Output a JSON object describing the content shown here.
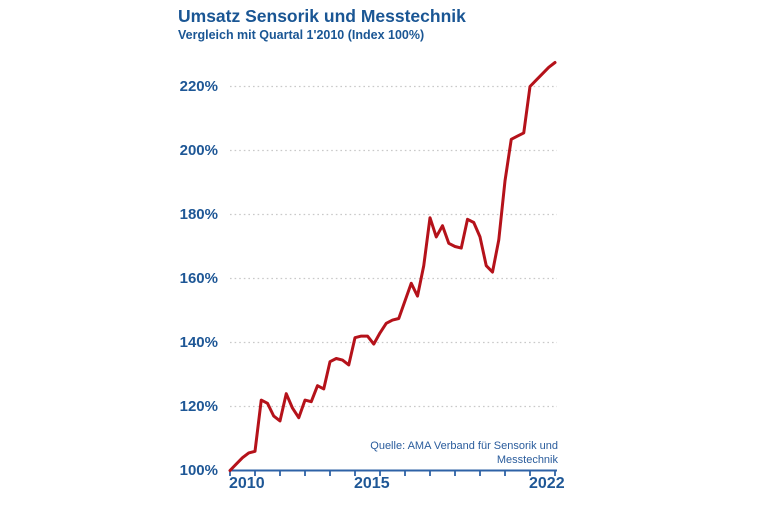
{
  "header": {
    "title": "Umsatz Sensorik und Messtechnik",
    "subtitle": "Vergleich mit Quartal 1'2010 (Index 100%)"
  },
  "source": {
    "line1": "Quelle: AMA Verband für Sensorik und",
    "line2": "Messtechnik"
  },
  "chart_data": {
    "type": "line",
    "title": "Umsatz Sensorik und Messtechnik",
    "subtitle": "Vergleich mit Quartal 1'2010 (Index 100%)",
    "x_unit": "quarter",
    "x_start": "2010 Q1",
    "x_end": "2023 Q1",
    "categories": [
      "2010 Q1",
      "2010 Q2",
      "2010 Q3",
      "2010 Q4",
      "2011 Q1",
      "2011 Q2",
      "2011 Q3",
      "2011 Q4",
      "2012 Q1",
      "2012 Q2",
      "2012 Q3",
      "2012 Q4",
      "2013 Q1",
      "2013 Q2",
      "2013 Q3",
      "2013 Q4",
      "2014 Q1",
      "2014 Q2",
      "2014 Q3",
      "2014 Q4",
      "2015 Q1",
      "2015 Q2",
      "2015 Q3",
      "2015 Q4",
      "2016 Q1",
      "2016 Q2",
      "2016 Q3",
      "2016 Q4",
      "2017 Q1",
      "2017 Q2",
      "2017 Q3",
      "2017 Q4",
      "2018 Q1",
      "2018 Q2",
      "2018 Q3",
      "2018 Q4",
      "2019 Q1",
      "2019 Q2",
      "2019 Q3",
      "2019 Q4",
      "2020 Q1",
      "2020 Q2",
      "2020 Q3",
      "2020 Q4",
      "2021 Q1",
      "2021 Q2",
      "2021 Q3",
      "2021 Q4",
      "2022 Q1",
      "2022 Q2",
      "2022 Q3",
      "2022 Q4",
      "2023 Q1"
    ],
    "series": [
      {
        "name": "Umsatzindex (Quartal 1'2010 = 100%)",
        "values": [
          100,
          102,
          104,
          105.5,
          106,
          122,
          121,
          117,
          115.5,
          124,
          119.5,
          116.5,
          122,
          121.5,
          126.5,
          125.5,
          134,
          135,
          134.5,
          133,
          141.5,
          142,
          142,
          139.5,
          143,
          146,
          147,
          147.5,
          153,
          158.5,
          154.5,
          164,
          179,
          173,
          176.5,
          171,
          170,
          169.5,
          178.5,
          177.5,
          173,
          164,
          162,
          172,
          190.5,
          203.5,
          204.5,
          205.5,
          220,
          222,
          224,
          226,
          227.5
        ]
      }
    ],
    "ylim": [
      100,
      230
    ],
    "yticks": [
      100,
      120,
      140,
      160,
      180,
      200,
      220
    ],
    "ytick_labels": [
      "100%",
      "120%",
      "140%",
      "160%",
      "180%",
      "200%",
      "220%"
    ],
    "xticks_years": [
      2010,
      2011,
      2012,
      2013,
      2014,
      2015,
      2016,
      2017,
      2018,
      2019,
      2020,
      2021,
      2022,
      2023
    ],
    "xtick_labels": [
      {
        "year": 2010,
        "label": "2010"
      },
      {
        "year": 2015,
        "label": "2015"
      },
      {
        "year": 2022,
        "label": "2022"
      }
    ],
    "grid": "horizontal dotted",
    "legend": "none",
    "colors": {
      "line": "#b5121a",
      "text": "#1a5694",
      "axis": "#2e62a6",
      "grid": "#c9c9c9",
      "background": "#ffffff"
    }
  }
}
